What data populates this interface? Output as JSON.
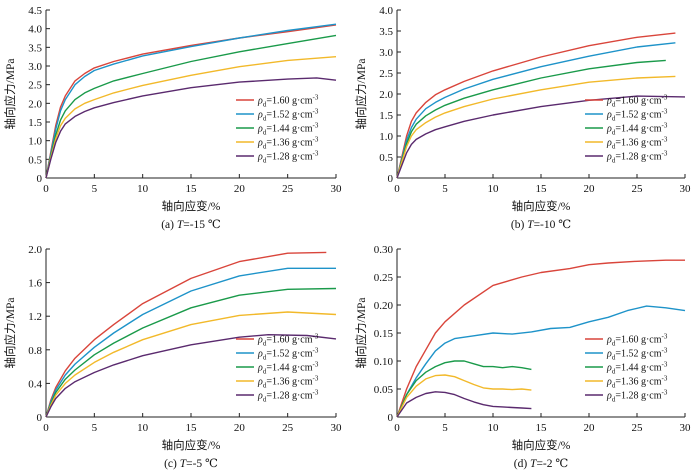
{
  "colors": {
    "red": "#d9453b",
    "blue": "#1e93c9",
    "green": "#1a9a4a",
    "yellow": "#f2b92a",
    "purple": "#5a2a6e"
  },
  "legend_labels": [
    {
      "rho": "ρ",
      "sub": "d",
      "rest": "=1.60 g·cm",
      "sup": "-3"
    },
    {
      "rho": "ρ",
      "sub": "d",
      "rest": "=1.52 g·cm",
      "sup": "-3"
    },
    {
      "rho": "ρ",
      "sub": "d",
      "rest": "=1.44 g·cm",
      "sup": "-3"
    },
    {
      "rho": "ρ",
      "sub": "d",
      "rest": "=1.36 g·cm",
      "sup": "-3"
    },
    {
      "rho": "ρ",
      "sub": "d",
      "rest": "=1.28 g·cm",
      "sup": "-3"
    }
  ],
  "chart_data": [
    {
      "type": "line",
      "caption": "(a) T=-15 ℃",
      "caption_parts": {
        "pre": "(a) ",
        "T": "T",
        "post": "=-15 ℃"
      },
      "xlabel": "轴向应变/%",
      "ylabel": "轴向应力/MPa",
      "xlim": [
        0,
        30
      ],
      "ylim": [
        0,
        4.5
      ],
      "xticks": [
        "0",
        "5",
        "10",
        "15",
        "20",
        "25",
        "30"
      ],
      "yticks": [
        "0",
        "0.5",
        "1.0",
        "1.5",
        "2.0",
        "2.5",
        "3.0",
        "3.5",
        "4.0",
        "4.5"
      ],
      "legend_position": "lower-right",
      "series": [
        {
          "name": "ρd=1.60 g·cm-3",
          "color": "red",
          "x": [
            0,
            0.5,
            1,
            1.5,
            2,
            3,
            4,
            5,
            7,
            10,
            15,
            20,
            25,
            30
          ],
          "y": [
            0,
            0.7,
            1.4,
            1.9,
            2.2,
            2.6,
            2.8,
            2.95,
            3.12,
            3.32,
            3.55,
            3.75,
            3.92,
            4.1
          ]
        },
        {
          "name": "ρd=1.52 g·cm-3",
          "color": "blue",
          "x": [
            0,
            0.5,
            1,
            1.5,
            2,
            3,
            4,
            5,
            7,
            10,
            15,
            20,
            25,
            30
          ],
          "y": [
            0,
            0.65,
            1.3,
            1.8,
            2.1,
            2.5,
            2.72,
            2.88,
            3.05,
            3.27,
            3.52,
            3.75,
            3.95,
            4.12
          ]
        },
        {
          "name": "ρd=1.44 g·cm-3",
          "color": "green",
          "x": [
            0,
            0.5,
            1,
            1.5,
            2,
            3,
            4,
            5,
            7,
            10,
            15,
            20,
            25,
            30
          ],
          "y": [
            0,
            0.6,
            1.15,
            1.55,
            1.8,
            2.1,
            2.28,
            2.4,
            2.6,
            2.8,
            3.12,
            3.38,
            3.6,
            3.82
          ]
        },
        {
          "name": "ρd=1.36 g·cm-3",
          "color": "yellow",
          "x": [
            0,
            0.5,
            1,
            1.5,
            2,
            3,
            4,
            5,
            7,
            10,
            15,
            20,
            25,
            30
          ],
          "y": [
            0,
            0.55,
            1.05,
            1.4,
            1.6,
            1.85,
            2.0,
            2.1,
            2.28,
            2.48,
            2.75,
            2.98,
            3.15,
            3.25
          ]
        },
        {
          "name": "ρd=1.28 g·cm-3",
          "color": "purple",
          "x": [
            0,
            0.5,
            1,
            1.5,
            2,
            3,
            4,
            5,
            7,
            10,
            15,
            20,
            25,
            28,
            30
          ],
          "y": [
            0,
            0.5,
            0.95,
            1.25,
            1.45,
            1.65,
            1.78,
            1.88,
            2.02,
            2.2,
            2.42,
            2.57,
            2.65,
            2.68,
            2.62
          ]
        }
      ]
    },
    {
      "type": "line",
      "caption": "(b) T=-10 ℃",
      "caption_parts": {
        "pre": "(b) ",
        "T": "T",
        "post": "=-10 ℃"
      },
      "xlabel": "轴向应变/%",
      "ylabel": "轴向应力/MPa",
      "xlim": [
        0,
        30
      ],
      "ylim": [
        0,
        4.0
      ],
      "xticks": [
        "0",
        "5",
        "10",
        "15",
        "20",
        "25",
        "30"
      ],
      "yticks": [
        "0",
        "0.5",
        "1.0",
        "1.5",
        "2.0",
        "2.5",
        "3.0",
        "3.5",
        "4.0"
      ],
      "legend_position": "lower-right",
      "series": [
        {
          "name": "ρd=1.60 g·cm-3",
          "color": "red",
          "x": [
            0,
            0.5,
            1,
            1.5,
            2,
            3,
            4,
            5,
            7,
            10,
            15,
            20,
            25,
            29
          ],
          "y": [
            0,
            0.5,
            1.0,
            1.35,
            1.55,
            1.8,
            1.98,
            2.1,
            2.3,
            2.55,
            2.88,
            3.15,
            3.35,
            3.45
          ]
        },
        {
          "name": "ρd=1.52 g·cm-3",
          "color": "blue",
          "x": [
            0,
            0.5,
            1,
            1.5,
            2,
            3,
            4,
            5,
            7,
            10,
            15,
            20,
            25,
            29
          ],
          "y": [
            0,
            0.45,
            0.9,
            1.2,
            1.4,
            1.65,
            1.8,
            1.92,
            2.12,
            2.35,
            2.65,
            2.9,
            3.12,
            3.22
          ]
        },
        {
          "name": "ρd=1.44 g·cm-3",
          "color": "green",
          "x": [
            0,
            0.5,
            1,
            1.5,
            2,
            3,
            4,
            5,
            7,
            10,
            15,
            20,
            25,
            28
          ],
          "y": [
            0,
            0.42,
            0.82,
            1.1,
            1.28,
            1.48,
            1.62,
            1.73,
            1.9,
            2.1,
            2.38,
            2.6,
            2.75,
            2.8
          ]
        },
        {
          "name": "ρd=1.36 g·cm-3",
          "color": "yellow",
          "x": [
            0,
            0.5,
            1,
            1.5,
            2,
            3,
            4,
            5,
            7,
            10,
            15,
            20,
            25,
            29
          ],
          "y": [
            0,
            0.38,
            0.75,
            1.0,
            1.15,
            1.32,
            1.45,
            1.55,
            1.7,
            1.88,
            2.1,
            2.28,
            2.38,
            2.42
          ]
        },
        {
          "name": "ρd=1.28 g·cm-3",
          "color": "purple",
          "x": [
            0,
            0.5,
            1,
            1.5,
            2,
            3,
            4,
            5,
            7,
            10,
            15,
            20,
            25,
            30
          ],
          "y": [
            0,
            0.3,
            0.6,
            0.8,
            0.92,
            1.05,
            1.15,
            1.22,
            1.35,
            1.5,
            1.7,
            1.85,
            1.95,
            1.93
          ]
        }
      ]
    },
    {
      "type": "line",
      "caption": "(c) T=-5 ℃",
      "caption_parts": {
        "pre": "(c) ",
        "T": "T",
        "post": "=-5 ℃"
      },
      "xlabel": "轴向应变/%",
      "ylabel": "轴向应力/MPa",
      "xlim": [
        0,
        30
      ],
      "ylim": [
        0,
        2.0
      ],
      "xticks": [
        "0",
        "5",
        "10",
        "15",
        "20",
        "25",
        "30"
      ],
      "yticks": [
        "0",
        "0.4",
        "0.8",
        "1.2",
        "1.6",
        "2.0"
      ],
      "legend_position": "lower-right",
      "series": [
        {
          "name": "ρd=1.60 g·cm-3",
          "color": "red",
          "x": [
            0,
            0.5,
            1,
            2,
            3,
            5,
            7,
            10,
            15,
            20,
            25,
            29
          ],
          "y": [
            0,
            0.2,
            0.35,
            0.55,
            0.7,
            0.92,
            1.1,
            1.35,
            1.65,
            1.85,
            1.95,
            1.96
          ]
        },
        {
          "name": "ρd=1.52 g·cm-3",
          "color": "blue",
          "x": [
            0,
            0.5,
            1,
            2,
            3,
            5,
            7,
            10,
            15,
            20,
            25,
            30
          ],
          "y": [
            0,
            0.18,
            0.32,
            0.5,
            0.63,
            0.83,
            1.0,
            1.22,
            1.5,
            1.68,
            1.77,
            1.77
          ]
        },
        {
          "name": "ρd=1.44 g·cm-3",
          "color": "green",
          "x": [
            0,
            0.5,
            1,
            2,
            3,
            5,
            7,
            10,
            15,
            20,
            25,
            30
          ],
          "y": [
            0,
            0.16,
            0.29,
            0.45,
            0.56,
            0.74,
            0.88,
            1.06,
            1.3,
            1.45,
            1.52,
            1.53
          ]
        },
        {
          "name": "ρd=1.36 g·cm-3",
          "color": "yellow",
          "x": [
            0,
            0.5,
            1,
            2,
            3,
            5,
            7,
            10,
            15,
            20,
            25,
            30
          ],
          "y": [
            0,
            0.14,
            0.26,
            0.4,
            0.5,
            0.65,
            0.77,
            0.92,
            1.1,
            1.21,
            1.25,
            1.22
          ]
        },
        {
          "name": "ρd=1.28 g·cm-3",
          "color": "purple",
          "x": [
            0,
            0.5,
            1,
            2,
            3,
            5,
            7,
            10,
            15,
            20,
            23,
            27,
            30
          ],
          "y": [
            0,
            0.12,
            0.22,
            0.34,
            0.42,
            0.53,
            0.62,
            0.73,
            0.86,
            0.95,
            0.98,
            0.97,
            0.93
          ]
        }
      ]
    },
    {
      "type": "line",
      "caption": "(d) T=-2 ℃",
      "caption_parts": {
        "pre": "(d) ",
        "T": "T",
        "post": "=-2 ℃"
      },
      "xlabel": "轴向应变/%",
      "ylabel": "轴向应力/MPa",
      "xlim": [
        0,
        30
      ],
      "ylim": [
        0,
        0.3
      ],
      "xticks": [
        "0",
        "5",
        "10",
        "15",
        "20",
        "25",
        "30"
      ],
      "yticks": [
        "0",
        "0.05",
        "0.10",
        "0.15",
        "0.20",
        "0.25",
        "0.30"
      ],
      "legend_position": "lower-right",
      "series": [
        {
          "name": "ρd=1.60 g·cm-3",
          "color": "red",
          "x": [
            0,
            1,
            2,
            3,
            4,
            5,
            7,
            10,
            13,
            15,
            18,
            20,
            22,
            25,
            28,
            30
          ],
          "y": [
            0,
            0.05,
            0.09,
            0.12,
            0.15,
            0.17,
            0.2,
            0.235,
            0.25,
            0.258,
            0.265,
            0.272,
            0.275,
            0.278,
            0.28,
            0.28
          ]
        },
        {
          "name": "ρd=1.52 g·cm-3",
          "color": "blue",
          "x": [
            0,
            1,
            2,
            3,
            4,
            5,
            6,
            8,
            10,
            12,
            14,
            16,
            18,
            20,
            22,
            24,
            26,
            28,
            30
          ],
          "y": [
            0,
            0.04,
            0.07,
            0.095,
            0.118,
            0.132,
            0.14,
            0.145,
            0.15,
            0.148,
            0.152,
            0.158,
            0.16,
            0.17,
            0.178,
            0.19,
            0.198,
            0.195,
            0.19
          ]
        },
        {
          "name": "ρd=1.44 g·cm-3",
          "color": "green",
          "x": [
            0,
            1,
            2,
            3,
            4,
            5,
            6,
            7,
            8,
            9,
            10,
            11,
            12,
            13,
            14
          ],
          "y": [
            0,
            0.04,
            0.065,
            0.08,
            0.09,
            0.097,
            0.1,
            0.1,
            0.095,
            0.09,
            0.09,
            0.088,
            0.09,
            0.088,
            0.085
          ]
        },
        {
          "name": "ρd=1.36 g·cm-3",
          "color": "yellow",
          "x": [
            0,
            1,
            2,
            3,
            4,
            5,
            6,
            7,
            8,
            9,
            10,
            11,
            12,
            13,
            14
          ],
          "y": [
            0,
            0.035,
            0.055,
            0.068,
            0.074,
            0.075,
            0.072,
            0.065,
            0.058,
            0.052,
            0.05,
            0.05,
            0.049,
            0.05,
            0.048
          ]
        },
        {
          "name": "ρd=1.28 g·cm-3",
          "color": "purple",
          "x": [
            0,
            1,
            2,
            3,
            4,
            5,
            6,
            7,
            8,
            9,
            10,
            11,
            12,
            13,
            14
          ],
          "y": [
            0,
            0.025,
            0.035,
            0.042,
            0.045,
            0.044,
            0.04,
            0.033,
            0.027,
            0.022,
            0.019,
            0.018,
            0.017,
            0.016,
            0.015
          ]
        }
      ]
    }
  ]
}
